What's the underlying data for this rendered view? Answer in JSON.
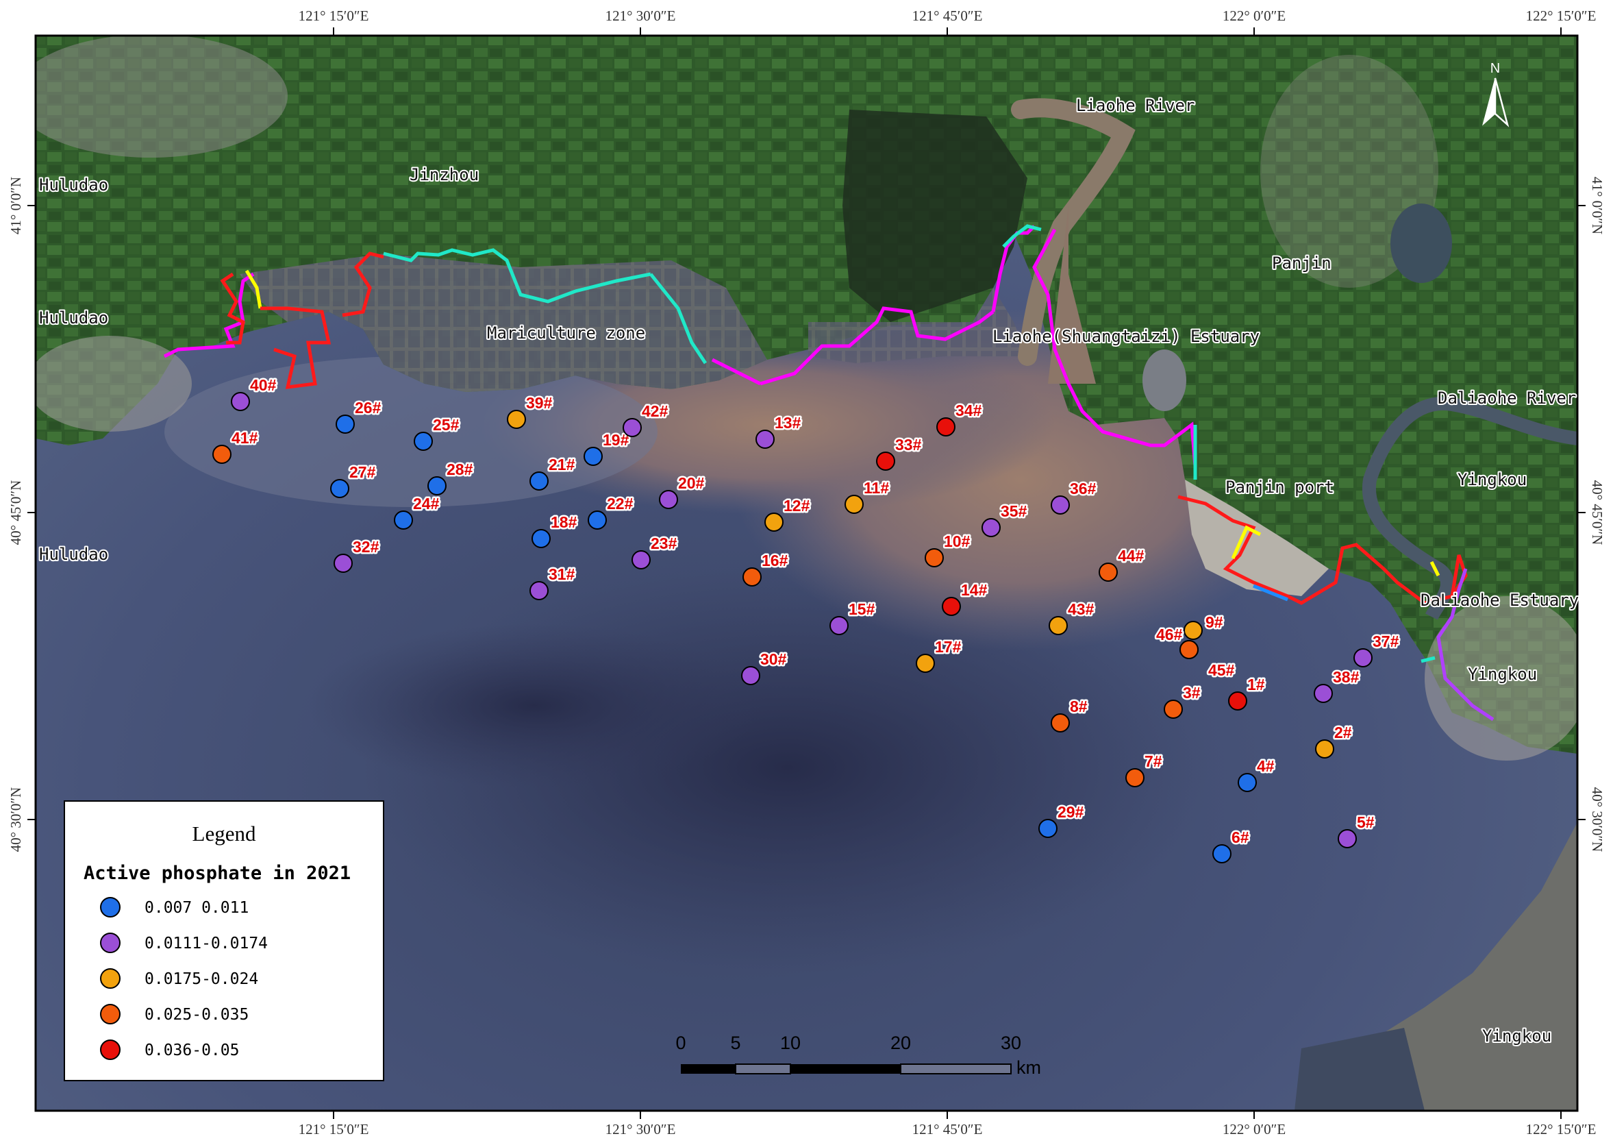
{
  "map": {
    "graticule": {
      "top": [
        "121° 15′0″E",
        "121° 30′0″E",
        "121° 45′0″E",
        "122° 0′0″E",
        "122° 15′0″E"
      ],
      "bottom": [
        "121° 15′0″E",
        "121° 30′0″E",
        "121° 45′0″E",
        "122° 0′0″E",
        "122° 15′0″E"
      ],
      "left": [
        "41° 0′0″N",
        "40° 45′0″N",
        "40° 30′0″N"
      ],
      "right": [
        "41° 0′0″N",
        "40° 45′0″N",
        "40° 30′0″N"
      ]
    },
    "places": {
      "huludao_1": "Huludao",
      "huludao_2": "Huludao",
      "huludao_3": "Huludao",
      "jinzhou": "Jinzhou",
      "mariculture": "Mariculture zone",
      "liaohe_river": "Liaohe River",
      "liaohe_estuary": "Liaohe(Shuangtaizi) Estuary",
      "panjin": "Panjin",
      "panjin_port": "Panjin port",
      "daliaohe_river": "Daliaohe River",
      "yingkou_1": "Yingkou",
      "daliaohe_estuary": "DaLiaohe Estuary",
      "yingkou_2": "Yingkou",
      "yingkou_3": "Yingkou"
    },
    "north_arrow": "N",
    "scale": {
      "ticks": [
        "0",
        "5",
        "10",
        "20",
        "30"
      ],
      "unit": "km"
    }
  },
  "legend": {
    "title": "Legend",
    "subtitle": "Active phosphate in 2021",
    "classes": [
      {
        "label": "0.007 0.011",
        "color": "#1f6fe8"
      },
      {
        "label": "0.0111-0.0174",
        "color": "#9b4fd6"
      },
      {
        "label": "0.0175-0.024",
        "color": "#f2a20e"
      },
      {
        "label": "0.025-0.035",
        "color": "#f25c0c"
      },
      {
        "label": "0.036-0.05",
        "color": "#e8100a"
      }
    ]
  },
  "stations": [
    {
      "id": "1#",
      "class": 4
    },
    {
      "id": "2#",
      "class": 2
    },
    {
      "id": "3#",
      "class": 3
    },
    {
      "id": "4#",
      "class": 0
    },
    {
      "id": "5#",
      "class": 1
    },
    {
      "id": "6#",
      "class": 0
    },
    {
      "id": "7#",
      "class": 3
    },
    {
      "id": "8#",
      "class": 3
    },
    {
      "id": "9#",
      "class": 2
    },
    {
      "id": "10#",
      "class": 3
    },
    {
      "id": "11#",
      "class": 2
    },
    {
      "id": "12#",
      "class": 2
    },
    {
      "id": "13#",
      "class": 1
    },
    {
      "id": "14#",
      "class": 4
    },
    {
      "id": "15#",
      "class": 1
    },
    {
      "id": "16#",
      "class": 3
    },
    {
      "id": "17#",
      "class": 2
    },
    {
      "id": "18#",
      "class": 0
    },
    {
      "id": "19#",
      "class": 0
    },
    {
      "id": "20#",
      "class": 1
    },
    {
      "id": "21#",
      "class": 0
    },
    {
      "id": "22#",
      "class": 0
    },
    {
      "id": "23#",
      "class": 1
    },
    {
      "id": "24#",
      "class": 0
    },
    {
      "id": "25#",
      "class": 0
    },
    {
      "id": "26#",
      "class": 0
    },
    {
      "id": "27#",
      "class": 0
    },
    {
      "id": "28#",
      "class": 0
    },
    {
      "id": "29#",
      "class": 0
    },
    {
      "id": "30#",
      "class": 1
    },
    {
      "id": "31#",
      "class": 1
    },
    {
      "id": "32#",
      "class": 1
    },
    {
      "id": "33#",
      "class": 4
    },
    {
      "id": "34#",
      "class": 4
    },
    {
      "id": "35#",
      "class": 1
    },
    {
      "id": "36#",
      "class": 1
    },
    {
      "id": "37#",
      "class": 1
    },
    {
      "id": "38#",
      "class": 1
    },
    {
      "id": "39#",
      "class": 2
    },
    {
      "id": "40#",
      "class": 1
    },
    {
      "id": "41#",
      "class": 3
    },
    {
      "id": "42#",
      "class": 1
    },
    {
      "id": "43#",
      "class": 2
    },
    {
      "id": "44#",
      "class": 3
    },
    {
      "id": "45#",
      "class": 3
    },
    {
      "id": "46#",
      "class": 3
    }
  ]
}
